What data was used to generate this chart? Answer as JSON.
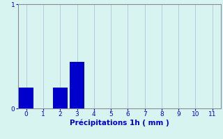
{
  "categories": [
    0,
    1,
    2,
    3,
    4,
    5,
    6,
    7,
    8,
    9,
    10,
    11
  ],
  "values": [
    0.2,
    0.0,
    0.2,
    0.45,
    0.0,
    0.0,
    0.0,
    0.0,
    0.0,
    0.0,
    0.0,
    0.0
  ],
  "bar_color": "#0000cc",
  "background_color": "#d8f4f0",
  "plot_bg_color": "#d8f4f0",
  "xlabel": "Précipitations 1h ( mm )",
  "xlabel_color": "#0000cc",
  "tick_color": "#0000cc",
  "axis_color": "#888899",
  "grid_color": "#aabbcc",
  "ylim": [
    0,
    1
  ],
  "xlim": [
    -0.5,
    11.5
  ],
  "yticks": [
    0,
    1
  ],
  "xticks": [
    0,
    1,
    2,
    3,
    4,
    5,
    6,
    7,
    8,
    9,
    10,
    11
  ],
  "bar_width": 0.85,
  "xlabel_fontsize": 7.5,
  "tick_fontsize": 6.5
}
